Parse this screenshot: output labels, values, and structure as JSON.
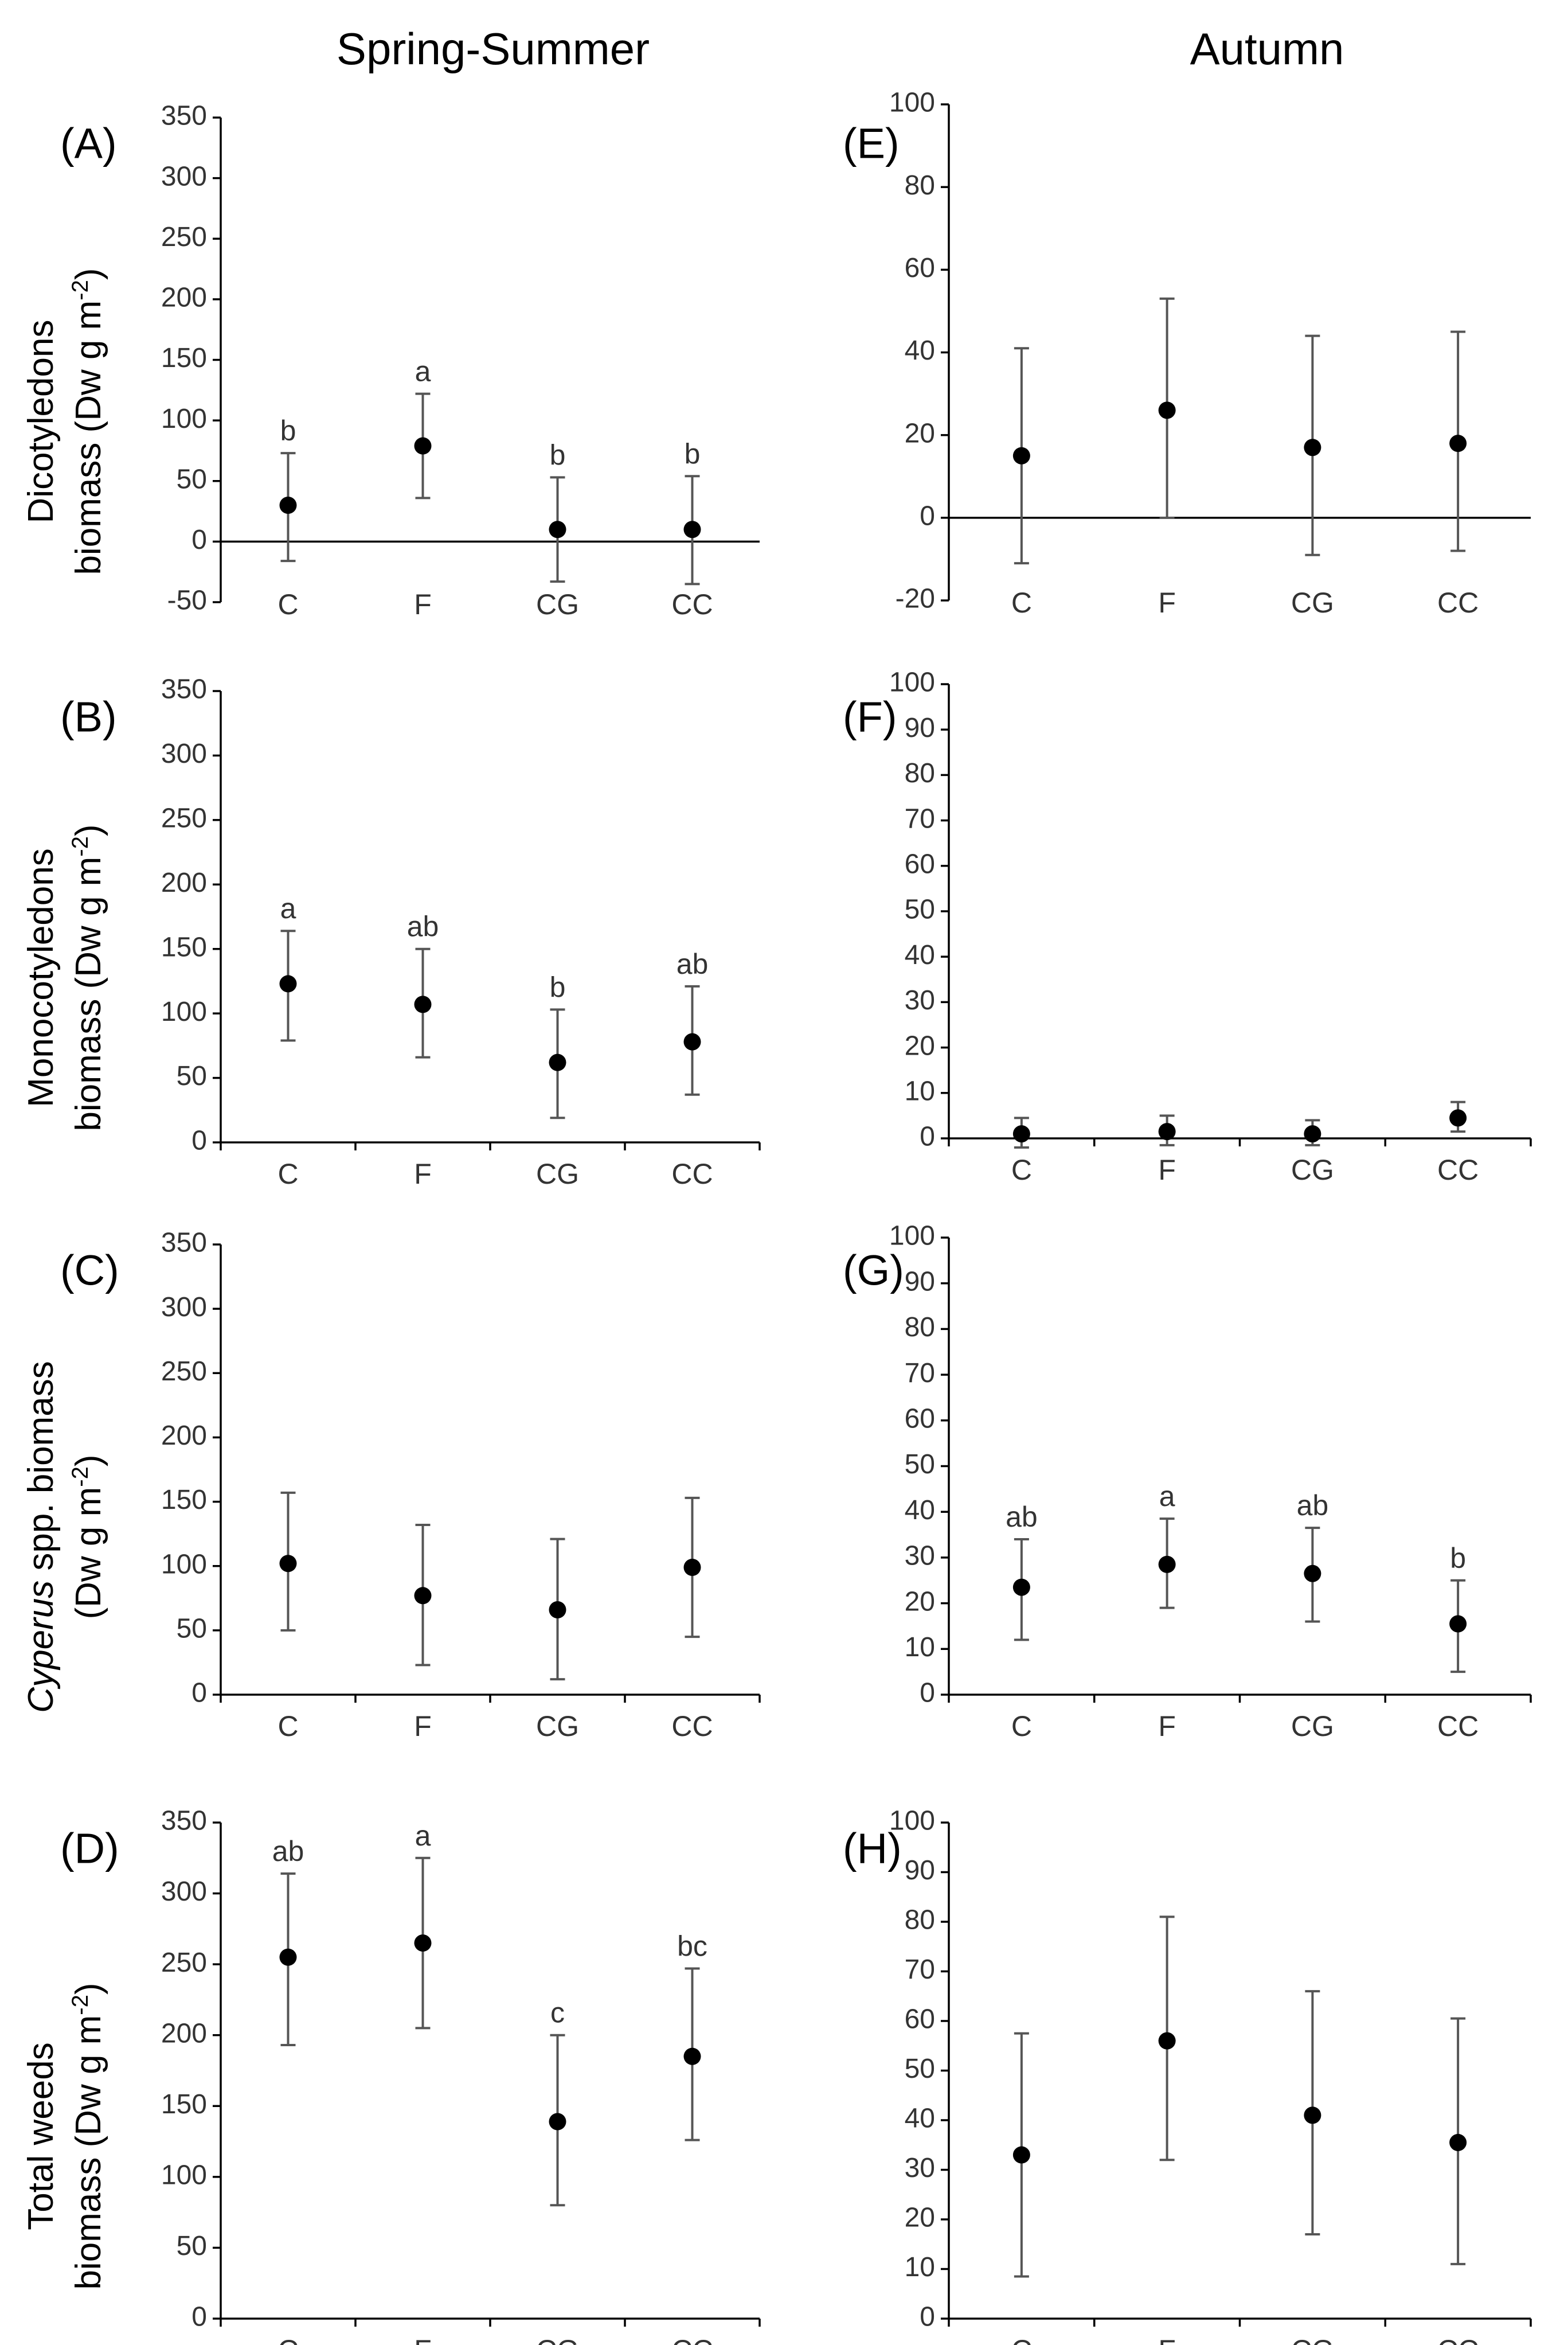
{
  "column_titles": {
    "left": "Spring-Summer",
    "right": "Autumn"
  },
  "row_ylabels": {
    "row1": {
      "line1": "Dicotyledons",
      "line2": "biomass (Dw g m",
      "sup": "-2",
      "close": ")"
    },
    "row2": {
      "line1": "Monocotyledons",
      "line2": "biomass (Dw g m",
      "sup": "-2",
      "close": ")"
    },
    "row3": {
      "italic": "Cyperus",
      "rest1": " spp. biomass",
      "line2": "(Dw g m",
      "sup": "-2",
      "close": ")"
    },
    "row4": {
      "line1": "Total weeds",
      "line2": "biomass (Dw g m",
      "sup": "-2",
      "close": ")"
    }
  },
  "chart_data": [
    {
      "panel": "(A)",
      "type": "scatter",
      "categories": [
        "C",
        "F",
        "CG",
        "CC"
      ],
      "ylim": [
        -50,
        350
      ],
      "ticks": [
        -50,
        0,
        50,
        100,
        150,
        200,
        250,
        300,
        350
      ],
      "values": [
        30,
        79,
        10,
        10
      ],
      "err_low": [
        -16,
        36,
        -33,
        -35
      ],
      "err_high": [
        73,
        122,
        53,
        54
      ],
      "letters": [
        "b",
        "a",
        "b",
        "b"
      ],
      "zero_line": true
    },
    {
      "panel": "(B)",
      "type": "scatter",
      "categories": [
        "C",
        "F",
        "CG",
        "CC"
      ],
      "ylim": [
        0,
        350
      ],
      "ticks": [
        0,
        50,
        100,
        150,
        200,
        250,
        300,
        350
      ],
      "values": [
        123,
        107,
        62,
        78
      ],
      "err_low": [
        79,
        66,
        19,
        37
      ],
      "err_high": [
        164,
        150,
        103,
        121
      ],
      "letters": [
        "a",
        "ab",
        "b",
        "ab"
      ]
    },
    {
      "panel": "(C)",
      "type": "scatter",
      "categories": [
        "C",
        "F",
        "CG",
        "CC"
      ],
      "ylim": [
        0,
        350
      ],
      "ticks": [
        0,
        50,
        100,
        150,
        200,
        250,
        300,
        350
      ],
      "values": [
        102,
        77,
        66,
        99
      ],
      "err_low": [
        50,
        23,
        12,
        45
      ],
      "err_high": [
        157,
        132,
        121,
        153
      ],
      "letters": [
        "",
        "",
        "",
        ""
      ]
    },
    {
      "panel": "(D)",
      "type": "scatter",
      "categories": [
        "C",
        "F",
        "CG",
        "CC"
      ],
      "ylim": [
        0,
        350
      ],
      "ticks": [
        0,
        50,
        100,
        150,
        200,
        250,
        300,
        350
      ],
      "values": [
        255,
        265,
        139,
        185
      ],
      "err_low": [
        193,
        205,
        80,
        126
      ],
      "err_high": [
        314,
        325,
        200,
        247
      ],
      "letters": [
        "ab",
        "a",
        "c",
        "bc"
      ]
    },
    {
      "panel": "(E)",
      "type": "scatter",
      "categories": [
        "C",
        "F",
        "CG",
        "CC"
      ],
      "ylim": [
        -20,
        100
      ],
      "ticks": [
        -20,
        0,
        20,
        40,
        60,
        80,
        100
      ],
      "values": [
        15,
        26,
        17,
        18
      ],
      "err_low": [
        -11,
        0,
        -9,
        -8
      ],
      "err_high": [
        41,
        53,
        44,
        45
      ],
      "letters": [
        "",
        "",
        "",
        ""
      ],
      "zero_line": true
    },
    {
      "panel": "(F)",
      "type": "scatter",
      "categories": [
        "C",
        "F",
        "CG",
        "CC"
      ],
      "ylim": [
        0,
        100
      ],
      "ticks": [
        0,
        10,
        20,
        30,
        40,
        50,
        60,
        70,
        80,
        90,
        100
      ],
      "values": [
        1,
        1.5,
        1,
        4.5
      ],
      "err_low": [
        -2,
        -1.5,
        -1.5,
        1.5
      ],
      "err_high": [
        4.5,
        5,
        4,
        8
      ],
      "letters": [
        "",
        "",
        "",
        ""
      ]
    },
    {
      "panel": "(G)",
      "type": "scatter",
      "categories": [
        "C",
        "F",
        "CG",
        "CC"
      ],
      "ylim": [
        0,
        100
      ],
      "ticks": [
        0,
        10,
        20,
        30,
        40,
        50,
        60,
        70,
        80,
        90,
        100
      ],
      "values": [
        23.5,
        28.5,
        26.5,
        15.5
      ],
      "err_low": [
        12,
        19,
        16,
        5
      ],
      "err_high": [
        34,
        38.5,
        36.5,
        25
      ],
      "letters": [
        "ab",
        "a",
        "ab",
        "b"
      ]
    },
    {
      "panel": "(H)",
      "type": "scatter",
      "categories": [
        "C",
        "F",
        "CG",
        "CC"
      ],
      "ylim": [
        0,
        100
      ],
      "ticks": [
        0,
        10,
        20,
        30,
        40,
        50,
        60,
        70,
        80,
        90,
        100
      ],
      "values": [
        33,
        56,
        41,
        35.5
      ],
      "err_low": [
        8.5,
        32,
        17,
        11
      ],
      "err_high": [
        57.5,
        81,
        66,
        60.5
      ],
      "letters": [
        "",
        "",
        "",
        ""
      ]
    }
  ]
}
